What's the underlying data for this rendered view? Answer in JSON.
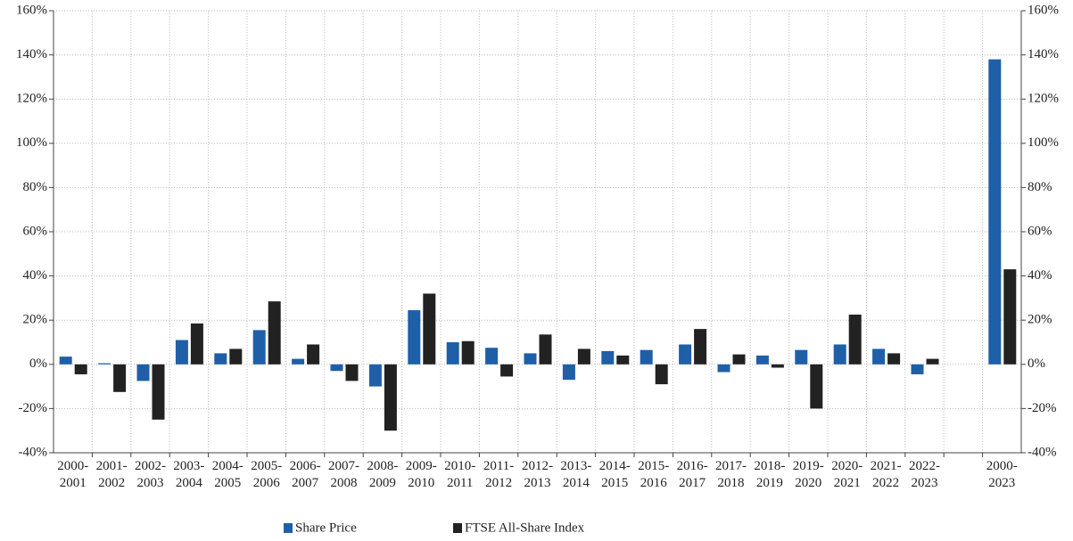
{
  "chart_data": {
    "type": "bar",
    "categories": [
      "2000-2001",
      "2001-2002",
      "2002-2003",
      "2003-2004",
      "2004-2005",
      "2005-2006",
      "2006-2007",
      "2007-2008",
      "2008-2009",
      "2009-2010",
      "2010-2011",
      "2011-2012",
      "2012-2013",
      "2013-2014",
      "2014-2015",
      "2015-2016",
      "2016-2017",
      "2017-2018",
      "2018-2019",
      "2019-2020",
      "2020-2021",
      "2021-2022",
      "2022-2023",
      null,
      "2000-2023"
    ],
    "series": [
      {
        "name": "Share Price",
        "color": "#1f5fa8",
        "values": [
          3.5,
          0.5,
          -7.5,
          11,
          5,
          15.5,
          2.5,
          -3,
          -10,
          24.5,
          10,
          7.5,
          5,
          -7,
          6,
          6.5,
          9,
          -3.5,
          4,
          6.5,
          9,
          7,
          -4.5,
          null,
          138
        ]
      },
      {
        "name": "FTSE All-Share Index",
        "color": "#222222",
        "values": [
          -4.5,
          -12.5,
          -25,
          18.5,
          7,
          28.5,
          9,
          -7.5,
          -30,
          32,
          10.5,
          -5.5,
          13.5,
          7,
          4,
          -9,
          16,
          4.5,
          -1.5,
          -20,
          22.5,
          5,
          2.5,
          null,
          43
        ]
      }
    ],
    "ylim": [
      -40,
      160
    ],
    "yticks": [
      {
        "value": -40,
        "label": "-40%"
      },
      {
        "value": -20,
        "label": "-20%"
      },
      {
        "value": 0,
        "label": "0%"
      },
      {
        "value": 20,
        "label": "20%"
      },
      {
        "value": 40,
        "label": "40%"
      },
      {
        "value": 60,
        "label": "60%"
      },
      {
        "value": 80,
        "label": "80%"
      },
      {
        "value": 100,
        "label": "100%"
      },
      {
        "value": 120,
        "label": "120%"
      },
      {
        "value": 140,
        "label": "140%"
      },
      {
        "value": 160,
        "label": "160%"
      }
    ],
    "grid": true,
    "legend": "bottom"
  }
}
